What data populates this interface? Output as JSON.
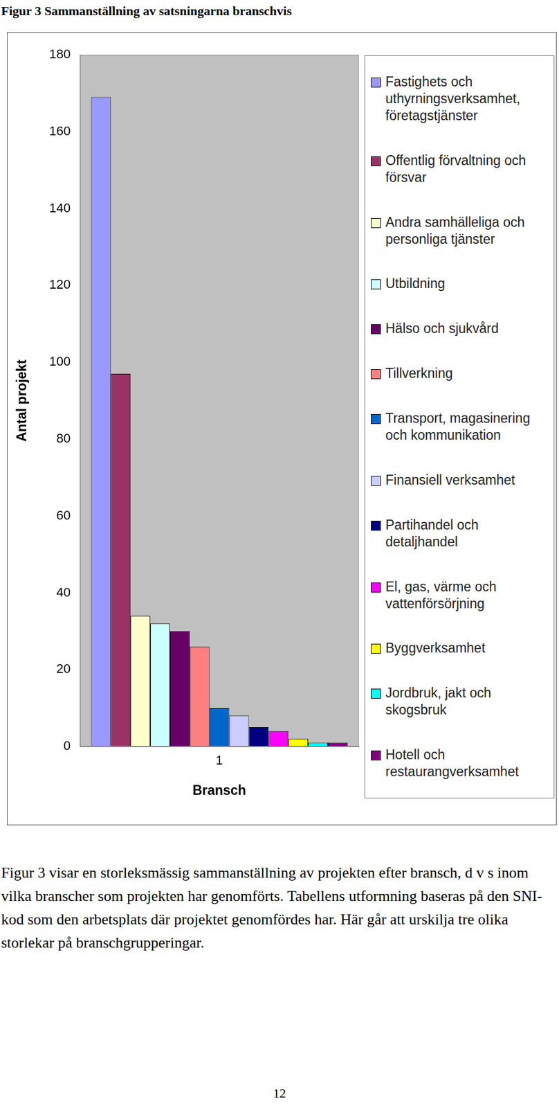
{
  "header": {
    "title": "Figur 3 Sammanställning av satsningarna branschvis"
  },
  "chart_data": {
    "type": "bar",
    "y_label": "Antal projekt",
    "x_label": "Bransch",
    "categories": [
      "1"
    ],
    "series": [
      {
        "name": "Fastighets och uthyrningsverksamhet, företagstjänster",
        "color": "#9999ff",
        "values": [
          169
        ]
      },
      {
        "name": "Offentlig förvaltning och försvar",
        "color": "#993366",
        "values": [
          97
        ]
      },
      {
        "name": "Andra samhälleliga och personliga tjänster",
        "color": "#ffffcc",
        "values": [
          34
        ]
      },
      {
        "name": "Utbildning",
        "color": "#ccffff",
        "values": [
          32
        ]
      },
      {
        "name": "Hälso och sjukvård",
        "color": "#660066",
        "values": [
          30
        ]
      },
      {
        "name": "Tillverkning",
        "color": "#ff8080",
        "values": [
          26
        ]
      },
      {
        "name": "Transport, magasinering och kommunikation",
        "color": "#0066cc",
        "values": [
          10
        ]
      },
      {
        "name": "Finansiell verksamhet",
        "color": "#ccccff",
        "values": [
          8
        ]
      },
      {
        "name": "Partihandel och detaljhandel",
        "color": "#000080",
        "values": [
          5
        ]
      },
      {
        "name": "El, gas, värme och vattenförsörjning",
        "color": "#ff00ff",
        "values": [
          4
        ]
      },
      {
        "name": "Byggverksamhet",
        "color": "#ffff00",
        "values": [
          2
        ]
      },
      {
        "name": "Jordbruk, jakt och skogsbruk",
        "color": "#00ffff",
        "values": [
          1
        ]
      },
      {
        "name": "Hotell och restaurangverksamhet",
        "color": "#800080",
        "values": [
          1
        ]
      }
    ],
    "ylim": [
      0,
      180
    ],
    "yticks": [
      0,
      20,
      40,
      60,
      80,
      100,
      120,
      140,
      160,
      180
    ],
    "grid": false,
    "legend": "right"
  },
  "body": {
    "paragraph": "Figur 3 visar en storleksmässig sammanställning av projekten efter bransch, d v s inom vilka branscher som projekten har genomförts. Tabellens utformning baseras på den SNI-kod som den arbetsplats där projektet genomfördes har. Här går att urskilja tre olika storlekar på branschgrupperingar."
  },
  "footer": {
    "page_number": "12"
  }
}
